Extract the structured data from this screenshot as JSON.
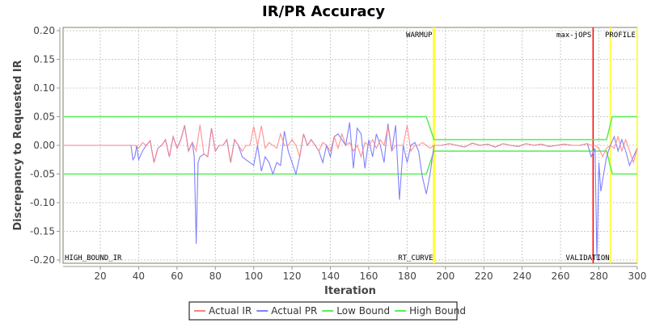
{
  "chart_data": {
    "type": "line",
    "title": "IR/PR Accuracy",
    "xlabel": "Iteration",
    "ylabel": "Discrepancy to Requested IR",
    "xlim": [
      1,
      300
    ],
    "ylim": [
      -0.2,
      0.2
    ],
    "x_ticks": [
      20,
      40,
      60,
      80,
      100,
      120,
      140,
      160,
      180,
      200,
      220,
      240,
      260,
      280,
      300
    ],
    "y_ticks": [
      0.2,
      0.15,
      0.1,
      0.05,
      0.0,
      -0.05,
      -0.1,
      -0.15,
      -0.2
    ],
    "y_tick_labels": [
      "0.20",
      "0.15",
      "0.10",
      "0.05",
      "0.00",
      "-0.05",
      "-0.10",
      "-0.15",
      "-0.20"
    ],
    "grid": true,
    "legend_position": "bottom",
    "legend": [
      {
        "name": "Actual IR",
        "color": "#ff8080"
      },
      {
        "name": "Actual PR",
        "color": "#8080ff"
      },
      {
        "name": "Low Bound",
        "color": "#55ee55"
      },
      {
        "name": "High Bound",
        "color": "#55ee55"
      }
    ],
    "markers": [
      {
        "label": "HIGH_BOUND_IR",
        "x": 1,
        "color": "#ffff00",
        "position": "bottom-left"
      },
      {
        "label": "WARMUP",
        "x": 194,
        "color": "#ffff00",
        "position": "top"
      },
      {
        "label": "RT_CURVE",
        "x": 194,
        "color": "#ffff00",
        "position": "bottom"
      },
      {
        "label": "max-jOPS",
        "x": 277,
        "color": "#ff0000",
        "position": "top"
      },
      {
        "label": "VALIDATION",
        "x": 286,
        "color": "#ffff00",
        "position": "bottom"
      },
      {
        "label": "PROFILE",
        "x": 300,
        "color": "#ffff00",
        "position": "top"
      }
    ],
    "series": [
      {
        "name": "High Bound",
        "color": "#55ee55",
        "x": [
          1,
          190,
          194,
          284,
          287,
          300
        ],
        "values": [
          0.05,
          0.05,
          0.01,
          0.01,
          0.05,
          0.05
        ]
      },
      {
        "name": "Low Bound",
        "color": "#55ee55",
        "x": [
          1,
          190,
          194,
          284,
          287,
          300
        ],
        "values": [
          -0.05,
          -0.05,
          -0.01,
          -0.01,
          -0.05,
          -0.05
        ]
      },
      {
        "name": "Actual IR",
        "color": "#ff8080",
        "x": [
          1,
          36,
          38,
          40,
          42,
          44,
          46,
          48,
          50,
          52,
          54,
          56,
          58,
          60,
          62,
          64,
          66,
          68,
          70,
          72,
          74,
          76,
          78,
          80,
          82,
          84,
          86,
          88,
          90,
          92,
          94,
          96,
          98,
          100,
          102,
          104,
          106,
          108,
          110,
          112,
          114,
          116,
          118,
          120,
          122,
          124,
          126,
          128,
          130,
          132,
          134,
          136,
          138,
          140,
          142,
          144,
          146,
          148,
          150,
          152,
          154,
          156,
          158,
          160,
          162,
          164,
          166,
          168,
          170,
          172,
          174,
          176,
          178,
          180,
          182,
          184,
          186,
          188,
          190,
          192,
          194,
          198,
          202,
          206,
          210,
          214,
          218,
          222,
          226,
          230,
          234,
          238,
          242,
          246,
          250,
          254,
          258,
          262,
          266,
          270,
          274,
          276,
          278,
          280,
          282,
          284,
          286,
          288,
          290,
          292,
          294,
          296,
          298,
          300
        ],
        "values": [
          0.0,
          0.0,
          0.0,
          -0.005,
          0.005,
          0.0,
          0.008,
          -0.03,
          -0.005,
          0.0,
          0.01,
          -0.02,
          0.015,
          -0.005,
          0.01,
          0.035,
          -0.01,
          0.005,
          -0.01,
          0.036,
          -0.015,
          -0.02,
          0.03,
          -0.01,
          0.0,
          0.0,
          0.01,
          -0.03,
          0.01,
          0.0,
          -0.01,
          0.0,
          0.0,
          0.033,
          0.0,
          0.034,
          -0.005,
          0.005,
          0.0,
          -0.005,
          0.02,
          0.0,
          0.0,
          0.01,
          0.0,
          -0.02,
          0.02,
          0.0,
          0.01,
          0.0,
          -0.01,
          0.005,
          0.0,
          -0.01,
          0.015,
          -0.005,
          0.02,
          0.0,
          0.005,
          -0.01,
          0.0,
          -0.02,
          0.005,
          0.0,
          0.01,
          -0.005,
          0.01,
          0.0,
          0.033,
          -0.01,
          0.0,
          0.0,
          0.0,
          0.035,
          -0.01,
          0.0,
          0.0,
          0.005,
          0.0,
          -0.005,
          0.0,
          0.0,
          0.003,
          0.0,
          -0.003,
          0.004,
          0.0,
          0.002,
          -0.003,
          0.003,
          0.0,
          -0.002,
          0.003,
          0.0,
          0.002,
          -0.002,
          0.0,
          0.002,
          0.0,
          0.0,
          0.003,
          0.0,
          0.0,
          -0.005,
          -0.02,
          -0.005,
          0.0,
          -0.005,
          0.015,
          -0.01,
          0.01,
          -0.01,
          -0.03,
          -0.005
        ]
      },
      {
        "name": "Actual PR",
        "color": "#8080ff",
        "x": [
          1,
          36,
          37,
          38,
          39,
          40,
          42,
          44,
          46,
          48,
          50,
          52,
          54,
          56,
          58,
          60,
          62,
          64,
          66,
          68,
          69,
          70,
          71,
          72,
          74,
          76,
          78,
          80,
          82,
          84,
          86,
          88,
          90,
          92,
          94,
          96,
          98,
          100,
          102,
          104,
          106,
          108,
          110,
          112,
          114,
          116,
          118,
          120,
          122,
          124,
          126,
          128,
          130,
          132,
          134,
          136,
          138,
          140,
          142,
          144,
          146,
          148,
          150,
          152,
          154,
          156,
          158,
          160,
          162,
          164,
          166,
          168,
          170,
          172,
          174,
          176,
          178,
          180,
          182,
          184,
          186,
          188,
          190,
          192,
          194,
          198,
          202,
          206,
          210,
          214,
          218,
          222,
          226,
          230,
          234,
          238,
          242,
          246,
          250,
          254,
          258,
          262,
          266,
          270,
          274,
          276,
          278,
          279,
          280,
          281,
          282,
          284,
          286,
          288,
          290,
          292,
          294,
          296,
          298,
          300
        ],
        "values": [
          0.0,
          0.0,
          -0.025,
          -0.02,
          0.0,
          -0.025,
          -0.01,
          0.0,
          0.008,
          -0.03,
          -0.005,
          0.0,
          0.01,
          -0.02,
          0.015,
          -0.005,
          0.01,
          0.035,
          -0.01,
          0.005,
          -0.02,
          -0.172,
          -0.03,
          -0.02,
          -0.015,
          -0.02,
          0.03,
          -0.01,
          0.0,
          0.0,
          0.01,
          -0.03,
          0.01,
          0.0,
          -0.02,
          -0.025,
          -0.03,
          -0.035,
          0.0,
          -0.045,
          -0.02,
          -0.03,
          -0.05,
          -0.03,
          -0.035,
          0.025,
          -0.01,
          -0.03,
          -0.05,
          -0.02,
          0.02,
          0.0,
          0.01,
          0.0,
          -0.01,
          -0.03,
          0.0,
          -0.02,
          0.015,
          0.02,
          0.01,
          0.0,
          0.04,
          -0.04,
          0.03,
          0.02,
          -0.04,
          0.01,
          -0.02,
          0.02,
          0.0,
          -0.03,
          0.038,
          -0.01,
          0.035,
          -0.095,
          0.0,
          -0.03,
          0.0,
          0.005,
          -0.01,
          -0.055,
          -0.085,
          -0.05,
          0.0,
          0.0,
          0.003,
          0.0,
          -0.003,
          0.004,
          0.0,
          0.002,
          -0.003,
          0.003,
          0.0,
          -0.002,
          0.003,
          0.0,
          0.002,
          -0.002,
          0.0,
          0.002,
          0.0,
          0.0,
          0.003,
          -0.02,
          -0.005,
          -0.2,
          -0.03,
          -0.08,
          -0.06,
          -0.02,
          0.0,
          0.015,
          -0.01,
          0.01,
          -0.01,
          -0.035,
          -0.02,
          -0.005
        ]
      }
    ]
  }
}
